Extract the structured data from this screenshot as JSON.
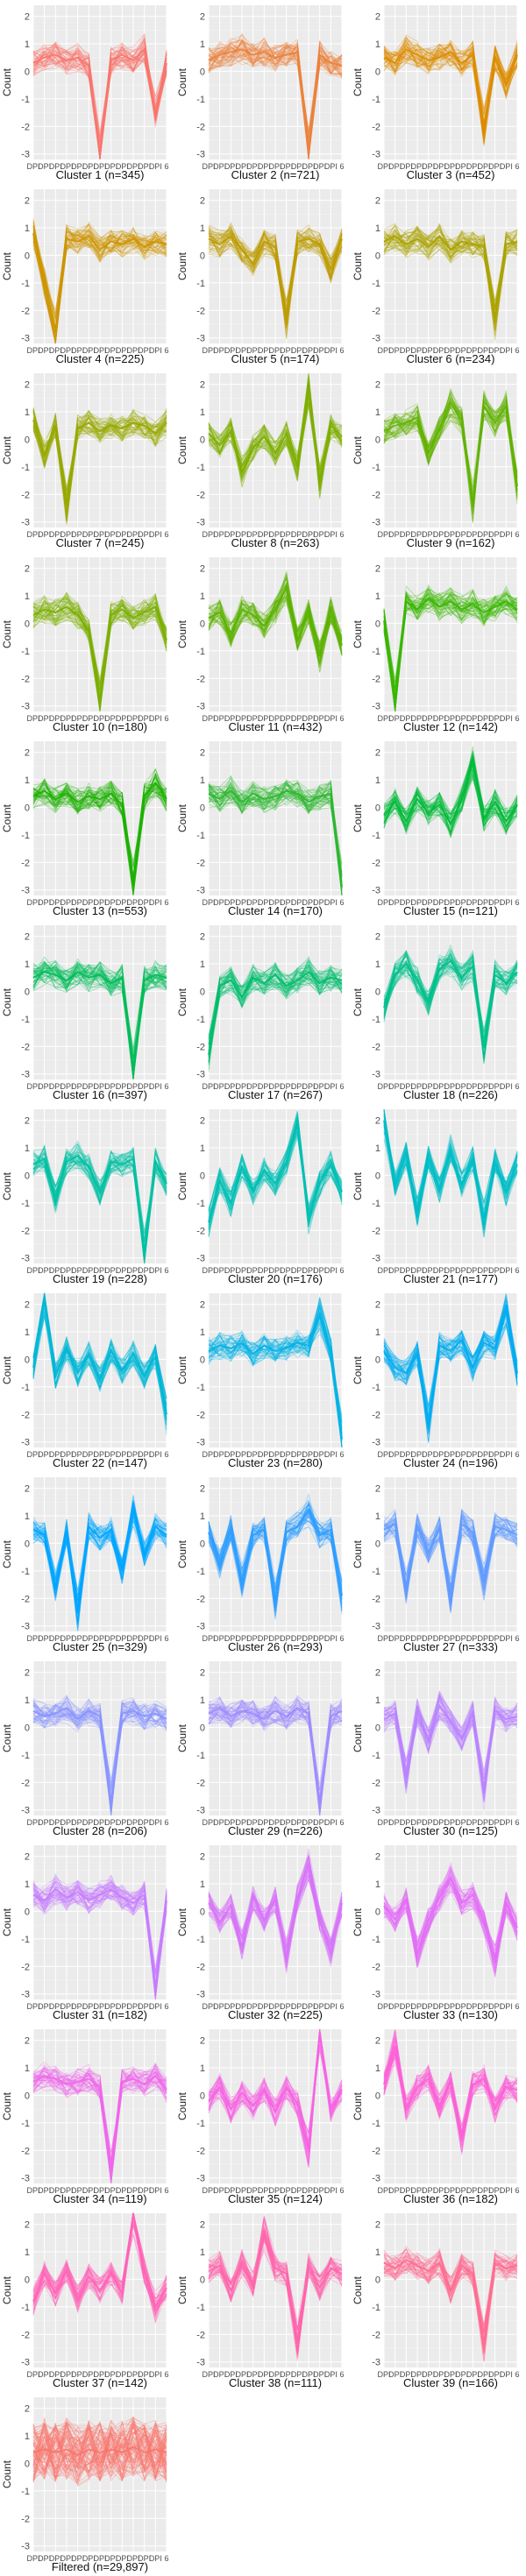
{
  "y_label": "Count",
  "panel_ylim": [
    -3.2,
    2.4
  ],
  "panel_yticks": [
    2,
    1,
    0,
    -1,
    -2,
    -3
  ],
  "x_tick_label": "DPI",
  "x_tick_tail": "6",
  "chart_data": [
    {
      "type": "line",
      "title": "Cluster 1 (n=345)",
      "color": "#F8766D",
      "profile": [
        0.3,
        0.5,
        0.6,
        0.4,
        0.5,
        0.2,
        -3.0,
        0.4,
        0.6,
        0.4,
        0.8,
        -1.5,
        0.3
      ]
    },
    {
      "type": "line",
      "title": "Cluster 2 (n=721)",
      "color": "#EC823C",
      "profile": [
        0.4,
        0.6,
        0.7,
        0.8,
        0.6,
        0.7,
        0.5,
        0.6,
        0.7,
        -2.9,
        0.6,
        0.3,
        0.2
      ]
    },
    {
      "type": "line",
      "title": "Cluster 3 (n=452)",
      "color": "#DE8C00",
      "profile": [
        0.5,
        0.3,
        0.8,
        0.6,
        0.4,
        0.5,
        0.7,
        0.3,
        0.6,
        -2.0,
        0.5,
        -0.5,
        0.6
      ]
    },
    {
      "type": "line",
      "title": "Cluster 4 (n=225)",
      "color": "#CF9400",
      "profile": [
        0.8,
        -1.0,
        -2.8,
        0.6,
        0.5,
        0.7,
        0.2,
        0.5,
        0.4,
        0.6,
        0.3,
        0.5,
        0.4
      ]
    },
    {
      "type": "line",
      "title": "Cluster 5 (n=174)",
      "color": "#BD9C00",
      "profile": [
        0.6,
        0.4,
        0.7,
        0.2,
        -0.3,
        0.5,
        0.3,
        -2.4,
        0.5,
        0.6,
        0.4,
        -0.5,
        0.6
      ]
    },
    {
      "type": "line",
      "title": "Cluster 6 (n=234)",
      "color": "#ABA300",
      "profile": [
        0.5,
        0.7,
        0.4,
        0.6,
        0.3,
        0.7,
        0.2,
        0.5,
        0.4,
        0.3,
        -2.3,
        0.4,
        0.5
      ]
    },
    {
      "type": "line",
      "title": "Cluster 7 (n=245)",
      "color": "#97A900",
      "profile": [
        0.7,
        -0.6,
        0.5,
        -2.4,
        0.4,
        0.6,
        0.3,
        0.5,
        0.4,
        0.6,
        0.5,
        0.2,
        0.6
      ]
    },
    {
      "type": "line",
      "title": "Cluster 8 (n=263)",
      "color": "#7FAE00",
      "profile": [
        0.2,
        -0.2,
        0.3,
        -1.2,
        -0.3,
        0.1,
        -0.5,
        0.2,
        -1.0,
        1.9,
        -1.5,
        0.5,
        0.1
      ]
    },
    {
      "type": "line",
      "title": "Cluster 9 (n=162)",
      "color": "#62B200",
      "profile": [
        0.3,
        0.5,
        0.6,
        0.8,
        -0.5,
        0.4,
        1.3,
        0.7,
        -2.4,
        1.2,
        0.6,
        1.2,
        -1.7
      ]
    },
    {
      "type": "line",
      "title": "Cluster 10 (n=180)",
      "color": "#7CAE00",
      "profile": [
        0.3,
        0.5,
        0.4,
        0.6,
        0.3,
        -0.3,
        -2.8,
        0.3,
        0.5,
        0.2,
        0.4,
        0.6,
        -0.6
      ]
    },
    {
      "type": "line",
      "title": "Cluster 11 (n=432)",
      "color": "#5BB300",
      "profile": [
        0.2,
        0.4,
        -0.4,
        0.5,
        0.3,
        -0.1,
        0.5,
        1.3,
        -0.6,
        0.4,
        -1.2,
        0.5,
        -0.8
      ]
    },
    {
      "type": "line",
      "title": "Cluster 12 (n=142)",
      "color": "#39B600",
      "profile": [
        0.1,
        -2.8,
        0.8,
        0.5,
        0.9,
        0.6,
        0.8,
        0.5,
        0.7,
        0.4,
        0.6,
        0.8,
        0.5
      ]
    },
    {
      "type": "line",
      "title": "Cluster 13 (n=553)",
      "color": "#1DB100",
      "profile": [
        0.4,
        0.6,
        0.3,
        0.5,
        0.2,
        0.4,
        0.3,
        0.5,
        0.1,
        -2.8,
        0.4,
        0.9,
        0.3
      ]
    },
    {
      "type": "line",
      "title": "Cluster 14 (n=170)",
      "color": "#2CB72F",
      "profile": [
        0.5,
        0.3,
        0.6,
        0.2,
        0.5,
        0.3,
        0.4,
        0.6,
        0.5,
        0.2,
        0.4,
        0.5,
        -2.9
      ]
    },
    {
      "type": "line",
      "title": "Cluster 15 (n=121)",
      "color": "#00BA38",
      "profile": [
        -0.3,
        0.2,
        -0.5,
        0.3,
        -0.2,
        0.1,
        -0.6,
        0.3,
        1.6,
        -0.4,
        0.2,
        -0.5,
        0.1
      ]
    },
    {
      "type": "line",
      "title": "Cluster 16 (n=397)",
      "color": "#00BC59",
      "profile": [
        0.5,
        0.7,
        0.6,
        0.4,
        0.7,
        0.5,
        0.6,
        0.3,
        0.5,
        -2.9,
        0.4,
        0.6,
        0.5
      ]
    },
    {
      "type": "line",
      "title": "Cluster 17 (n=267)",
      "color": "#00BE6C",
      "profile": [
        -2.3,
        0.2,
        0.4,
        -0.2,
        0.5,
        0.3,
        0.6,
        0.2,
        0.4,
        0.7,
        0.3,
        0.5,
        0.4
      ]
    },
    {
      "type": "line",
      "title": "Cluster 18 (n=226)",
      "color": "#00C08B",
      "profile": [
        -0.6,
        0.6,
        1.0,
        0.4,
        -0.4,
        0.8,
        1.1,
        0.5,
        0.9,
        -2.0,
        0.6,
        0.3,
        0.7
      ]
    },
    {
      "type": "line",
      "title": "Cluster 19 (n=228)",
      "color": "#00C1A3",
      "profile": [
        0.4,
        0.6,
        -0.8,
        0.5,
        0.7,
        0.3,
        -0.6,
        0.5,
        0.4,
        0.6,
        -2.8,
        0.5,
        -0.3
      ]
    },
    {
      "type": "line",
      "title": "Cluster 20 (n=176)",
      "color": "#00BFB4",
      "profile": [
        -1.7,
        -0.2,
        -1.0,
        0.3,
        -0.6,
        0.2,
        -0.3,
        0.5,
        1.9,
        -1.5,
        -0.3,
        0.4,
        -0.6
      ]
    },
    {
      "type": "line",
      "title": "Cluster 21 (n=177)",
      "color": "#00BCC7",
      "profile": [
        2.0,
        -0.3,
        0.8,
        -1.3,
        0.6,
        -0.5,
        0.9,
        -0.3,
        0.6,
        -1.6,
        0.5,
        -0.6,
        0.4
      ]
    },
    {
      "type": "line",
      "title": "Cluster 22 (n=147)",
      "color": "#00B7D6",
      "profile": [
        -0.3,
        2.2,
        -0.6,
        0.4,
        -0.5,
        0.2,
        -0.7,
        0.3,
        -0.4,
        0.2,
        -0.6,
        0.1,
        -2.0
      ]
    },
    {
      "type": "line",
      "title": "Cluster 23 (n=280)",
      "color": "#00B3E6",
      "profile": [
        0.3,
        0.5,
        0.4,
        0.6,
        0.2,
        0.5,
        0.3,
        0.4,
        0.6,
        0.5,
        1.6,
        0.3,
        -2.9
      ]
    },
    {
      "type": "line",
      "title": "Cluster 24 (n=196)",
      "color": "#00ACF0",
      "profile": [
        0.3,
        -0.3,
        -0.5,
        0.2,
        -2.4,
        0.5,
        0.3,
        0.7,
        -0.3,
        0.6,
        0.4,
        1.8,
        -0.5
      ]
    },
    {
      "type": "line",
      "title": "Cluster 25 (n=329)",
      "color": "#00A5FF",
      "profile": [
        0.5,
        0.3,
        -1.6,
        0.4,
        -2.5,
        0.6,
        0.2,
        0.5,
        -1.0,
        1.2,
        -0.4,
        0.6,
        0.3
      ]
    },
    {
      "type": "line",
      "title": "Cluster 26 (n=293)",
      "color": "#2E9EFF",
      "profile": [
        0.4,
        -0.8,
        0.5,
        -1.4,
        0.3,
        0.5,
        -2.1,
        0.4,
        0.6,
        1.2,
        0.3,
        0.5,
        -1.9
      ]
    },
    {
      "type": "line",
      "title": "Cluster 27 (n=333)",
      "color": "#619CFF",
      "profile": [
        0.5,
        0.7,
        -1.6,
        0.6,
        -0.3,
        0.5,
        -1.9,
        0.7,
        0.4,
        -1.4,
        0.6,
        0.5,
        0.3
      ]
    },
    {
      "type": "line",
      "title": "Cluster 28 (n=206)",
      "color": "#8A94FF",
      "profile": [
        0.6,
        0.4,
        0.5,
        0.7,
        0.3,
        0.6,
        0.4,
        -2.8,
        0.5,
        0.6,
        0.4,
        0.5,
        0.3
      ]
    },
    {
      "type": "line",
      "title": "Cluster 29 (n=226)",
      "color": "#9F8CFF",
      "profile": [
        0.5,
        0.7,
        0.4,
        0.6,
        0.5,
        0.3,
        0.6,
        0.4,
        0.7,
        0.5,
        -2.9,
        0.4,
        0.6
      ]
    },
    {
      "type": "line",
      "title": "Cluster 30 (n=125)",
      "color": "#B983FF",
      "profile": [
        0.3,
        0.5,
        -1.8,
        0.6,
        -0.5,
        0.8,
        0.2,
        -0.4,
        0.5,
        -2.3,
        0.6,
        0.3,
        0.4
      ]
    },
    {
      "type": "line",
      "title": "Cluster 31 (n=182)",
      "color": "#C77CFF",
      "profile": [
        0.6,
        0.4,
        0.8,
        0.5,
        0.7,
        0.4,
        0.6,
        0.8,
        0.5,
        0.3,
        0.6,
        -2.8,
        0.4
      ]
    },
    {
      "type": "line",
      "title": "Cluster 32 (n=225)",
      "color": "#D774F8",
      "profile": [
        0.3,
        -0.4,
        0.2,
        -1.3,
        0.5,
        -0.3,
        0.4,
        -1.7,
        0.5,
        1.7,
        -0.3,
        -1.5,
        0.3
      ]
    },
    {
      "type": "line",
      "title": "Cluster 33 (n=130)",
      "color": "#E36EF6",
      "profile": [
        0.2,
        -0.3,
        0.4,
        -1.5,
        -0.3,
        0.5,
        1.2,
        0.3,
        0.6,
        -0.4,
        -1.8,
        0.3,
        -0.6
      ]
    },
    {
      "type": "line",
      "title": "Cluster 34 (n=119)",
      "color": "#EF67EB",
      "profile": [
        0.5,
        0.7,
        0.6,
        0.4,
        0.5,
        0.6,
        0.3,
        -2.8,
        0.5,
        0.6,
        0.4,
        0.7,
        0.2
      ]
    },
    {
      "type": "line",
      "title": "Cluster 35 (n=124)",
      "color": "#F564E3",
      "profile": [
        -0.2,
        0.3,
        -0.5,
        0.1,
        -0.4,
        0.2,
        -0.6,
        0.3,
        -0.3,
        -2.0,
        2.3,
        -0.5,
        0.2
      ]
    },
    {
      "type": "line",
      "title": "Cluster 36 (n=182)",
      "color": "#FB61D7",
      "profile": [
        0.4,
        1.8,
        -0.5,
        0.3,
        0.6,
        -0.4,
        0.5,
        -1.6,
        0.4,
        0.6,
        -0.5,
        0.3,
        0.2
      ]
    },
    {
      "type": "line",
      "title": "Cluster 37 (n=142)",
      "color": "#FF63B6",
      "profile": [
        -0.8,
        0.2,
        -0.5,
        0.3,
        -0.7,
        0.1,
        -0.4,
        0.2,
        -0.5,
        2.4,
        0.3,
        -1.0,
        -0.3
      ]
    },
    {
      "type": "line",
      "title": "Cluster 38 (n=111)",
      "color": "#FF65AC",
      "profile": [
        0.3,
        0.5,
        -0.4,
        0.6,
        -0.2,
        1.7,
        0.4,
        0.2,
        -2.3,
        0.5,
        -0.3,
        0.4,
        0.2
      ]
    },
    {
      "type": "line",
      "title": "Cluster 39 (n=166)",
      "color": "#FF6C91",
      "profile": [
        0.6,
        0.4,
        0.7,
        0.5,
        0.3,
        0.6,
        -0.4,
        0.5,
        0.2,
        -2.4,
        0.6,
        0.4,
        0.5
      ]
    },
    {
      "type": "line",
      "title": "Filtered (n=29,897)",
      "color": "#F8766D",
      "profile": [
        0.4,
        0.5,
        0.4,
        0.5,
        0.3,
        0.5,
        0.4,
        0.5,
        0.4,
        0.6,
        0.4,
        0.5,
        0.4
      ],
      "spread": 2.2
    }
  ]
}
